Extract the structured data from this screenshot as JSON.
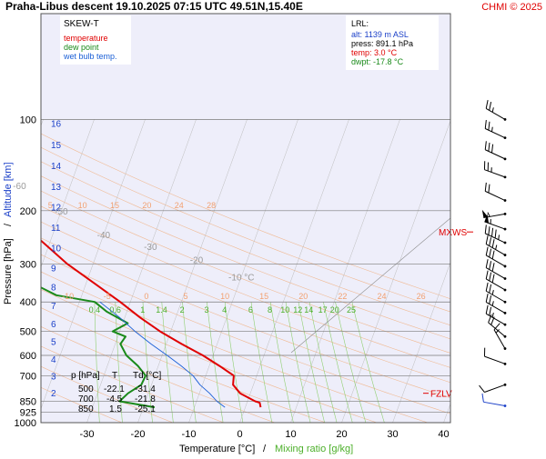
{
  "header": {
    "title": "Praha-Libus   descent   19.10.2025 07:15 UTC  49.51N,15.40E",
    "copyright": "CHMI © 2025"
  },
  "legend": {
    "title": "SKEW-T",
    "items": [
      {
        "label": "temperature",
        "color": "#e00000"
      },
      {
        "label": "dew point",
        "color": "#1a8a1a"
      },
      {
        "label": "wet bulb temp.",
        "color": "#1a5fd6"
      }
    ]
  },
  "lrl": {
    "title": "LRL:",
    "alt": "alt: 1139 m ASL",
    "press": "press: 891.1 hPa",
    "temp": "temp: 3.0 °C",
    "dwpt": "dwpt: -17.8 °C"
  },
  "table": {
    "headers": [
      "p [hPa]",
      "T",
      "Td [°C]"
    ],
    "rows": [
      [
        "500",
        "-22.1",
        "-31.4"
      ],
      [
        "700",
        "-4.5",
        "-21.8"
      ],
      [
        "850",
        "1.5",
        "-25.1"
      ]
    ]
  },
  "markers": {
    "mxws": "MXWS",
    "fzlv": "FZLV"
  },
  "axes": {
    "xlabel_temp": "Temperature [°C]",
    "xlabel_sep": "/",
    "xlabel_mix": "Mixing ratio [g/kg]",
    "ylabel_press": "Pressure [hPa]",
    "ylabel_sep": "/",
    "ylabel_alt": "Altitude [km]"
  },
  "colors": {
    "temperature": "#e00000",
    "dewpoint": "#1a8a1a",
    "wetbulb": "#1a5fd6",
    "dry_adiabat": "#f0b890",
    "mixing_ratio": "#8fcf70",
    "isobar": "#7a7a7a",
    "background": "#eeeefa",
    "wind_upper": "#000000",
    "wind_surface": "#1a3fc8"
  },
  "chart_data": {
    "type": "line",
    "subtype": "skew-t log-p",
    "title": "Praha-Libus   descent   19.10.2025 07:15 UTC  49.51N,15.40E",
    "xlabel": "Temperature [°C]  /  Mixing ratio [g/kg]",
    "ylabel": "Pressure [hPa]  /  Altitude [km]",
    "xlim": [
      -35,
      40
    ],
    "ylim": [
      1000,
      100
    ],
    "yscale": "log",
    "x_ticks": [
      -30,
      -20,
      -10,
      0,
      10,
      20,
      30,
      40
    ],
    "pressure_ticks": [
      100,
      200,
      300,
      400,
      500,
      600,
      700,
      850,
      925,
      1000
    ],
    "altitude_ticks_km": [
      2,
      3,
      4,
      5,
      6,
      7,
      8,
      9,
      10,
      11,
      12,
      13,
      14,
      15,
      16
    ],
    "altitude_tick_pressures": [
      795,
      701,
      616,
      540,
      472,
      411,
      356,
      308,
      265,
      227,
      194,
      166,
      142,
      121,
      103
    ],
    "isotherm_labels": [
      {
        "label": "-80 °C",
        "p": 110
      },
      {
        "label": "-70",
        "p": 135
      },
      {
        "label": "-60",
        "p": 165
      },
      {
        "label": "-50",
        "p": 200
      },
      {
        "label": "-40",
        "p": 240
      },
      {
        "label": "-30",
        "p": 262
      },
      {
        "label": "-20",
        "p": 290
      },
      {
        "label": "-10 °C",
        "p": 330
      }
    ],
    "dry_adiabat_labels_upper": [
      "5",
      "10",
      "15",
      "20",
      "24",
      "28",
      "30",
      "32",
      "34"
    ],
    "dry_adiabat_labels_lower": [
      "-10",
      "-5",
      "0",
      "5",
      "10",
      "15",
      "20",
      "22",
      "24",
      "26",
      "28",
      "30",
      "32",
      "34"
    ],
    "mixing_ratio_labels": [
      "0.4",
      "0.6",
      "1",
      "1.4",
      "2",
      "3",
      "4",
      "6",
      "8",
      "10",
      "12",
      "14",
      "17",
      "20",
      "25"
    ],
    "series": [
      {
        "name": "temperature",
        "points": [
          [
            890,
            3.0
          ],
          [
            860,
            2.5
          ],
          [
            850,
            1.5
          ],
          [
            800,
            -2.0
          ],
          [
            750,
            -4.0
          ],
          [
            700,
            -4.5
          ],
          [
            650,
            -8.0
          ],
          [
            600,
            -12.0
          ],
          [
            550,
            -17.0
          ],
          [
            500,
            -22.1
          ],
          [
            450,
            -27.0
          ],
          [
            400,
            -32.0
          ],
          [
            350,
            -38.0
          ],
          [
            300,
            -45.0
          ],
          [
            250,
            -52.0
          ],
          [
            230,
            -55.0
          ],
          [
            210,
            -56.0
          ],
          [
            200,
            -55.0
          ],
          [
            180,
            -56.5
          ],
          [
            160,
            -58.0
          ],
          [
            140,
            -59.0
          ],
          [
            120,
            -60.5
          ],
          [
            110,
            -61.0
          ],
          [
            100,
            -61.0
          ]
        ]
      },
      {
        "name": "dew point",
        "points": [
          [
            890,
            -17.8
          ],
          [
            850,
            -25.1
          ],
          [
            800,
            -24.0
          ],
          [
            750,
            -22.0
          ],
          [
            700,
            -21.8
          ],
          [
            650,
            -24.0
          ],
          [
            600,
            -27.0
          ],
          [
            550,
            -29.0
          ],
          [
            520,
            -28.5
          ],
          [
            500,
            -31.4
          ],
          [
            470,
            -29.0
          ],
          [
            430,
            -34.0
          ],
          [
            400,
            -37.0
          ],
          [
            380,
            -45.0
          ],
          [
            350,
            -50.0
          ],
          [
            320,
            -52.0
          ],
          [
            300,
            -55.0
          ],
          [
            270,
            -58.0
          ],
          [
            240,
            -63.0
          ],
          [
            220,
            -66.0
          ],
          [
            210,
            -71.0
          ],
          [
            200,
            -76.0
          ],
          [
            190,
            -81.0
          ],
          [
            180,
            -85.0
          ],
          [
            160,
            -87.0
          ],
          [
            140,
            -87.0
          ],
          [
            120,
            -88.0
          ],
          [
            100,
            -89.0
          ]
        ]
      },
      {
        "name": "wet bulb temp.",
        "points": [
          [
            890,
            -4.0
          ],
          [
            850,
            -6.0
          ],
          [
            800,
            -8.0
          ],
          [
            750,
            -10.5
          ],
          [
            700,
            -12.5
          ],
          [
            650,
            -15.5
          ],
          [
            600,
            -19.0
          ],
          [
            550,
            -23.0
          ],
          [
            500,
            -27.0
          ],
          [
            450,
            -31.0
          ],
          [
            400,
            -36.0
          ]
        ]
      }
    ],
    "wind_barbs": [
      {
        "p": 100,
        "dir": 300,
        "speed_kt": 25
      },
      {
        "p": 115,
        "dir": 295,
        "speed_kt": 25
      },
      {
        "p": 135,
        "dir": 295,
        "speed_kt": 30
      },
      {
        "p": 155,
        "dir": 290,
        "speed_kt": 25
      },
      {
        "p": 185,
        "dir": 295,
        "speed_kt": 20
      },
      {
        "p": 205,
        "dir": 260,
        "speed_kt": 55
      },
      {
        "p": 230,
        "dir": 290,
        "speed_kt": 55
      },
      {
        "p": 255,
        "dir": 295,
        "speed_kt": 45
      },
      {
        "p": 280,
        "dir": 300,
        "speed_kt": 35
      },
      {
        "p": 305,
        "dir": 300,
        "speed_kt": 30
      },
      {
        "p": 335,
        "dir": 300,
        "speed_kt": 30
      },
      {
        "p": 365,
        "dir": 300,
        "speed_kt": 30
      },
      {
        "p": 400,
        "dir": 300,
        "speed_kt": 25
      },
      {
        "p": 435,
        "dir": 300,
        "speed_kt": 25
      },
      {
        "p": 475,
        "dir": 300,
        "speed_kt": 25
      },
      {
        "p": 520,
        "dir": 310,
        "speed_kt": 20
      },
      {
        "p": 570,
        "dir": 330,
        "speed_kt": 15
      },
      {
        "p": 640,
        "dir": 290,
        "speed_kt": 10
      },
      {
        "p": 750,
        "dir": 250,
        "speed_kt": 10
      },
      {
        "p": 880,
        "dir": 280,
        "speed_kt": 10
      }
    ],
    "mxws_p": 235,
    "fzlv_p": 800,
    "grid": true
  }
}
